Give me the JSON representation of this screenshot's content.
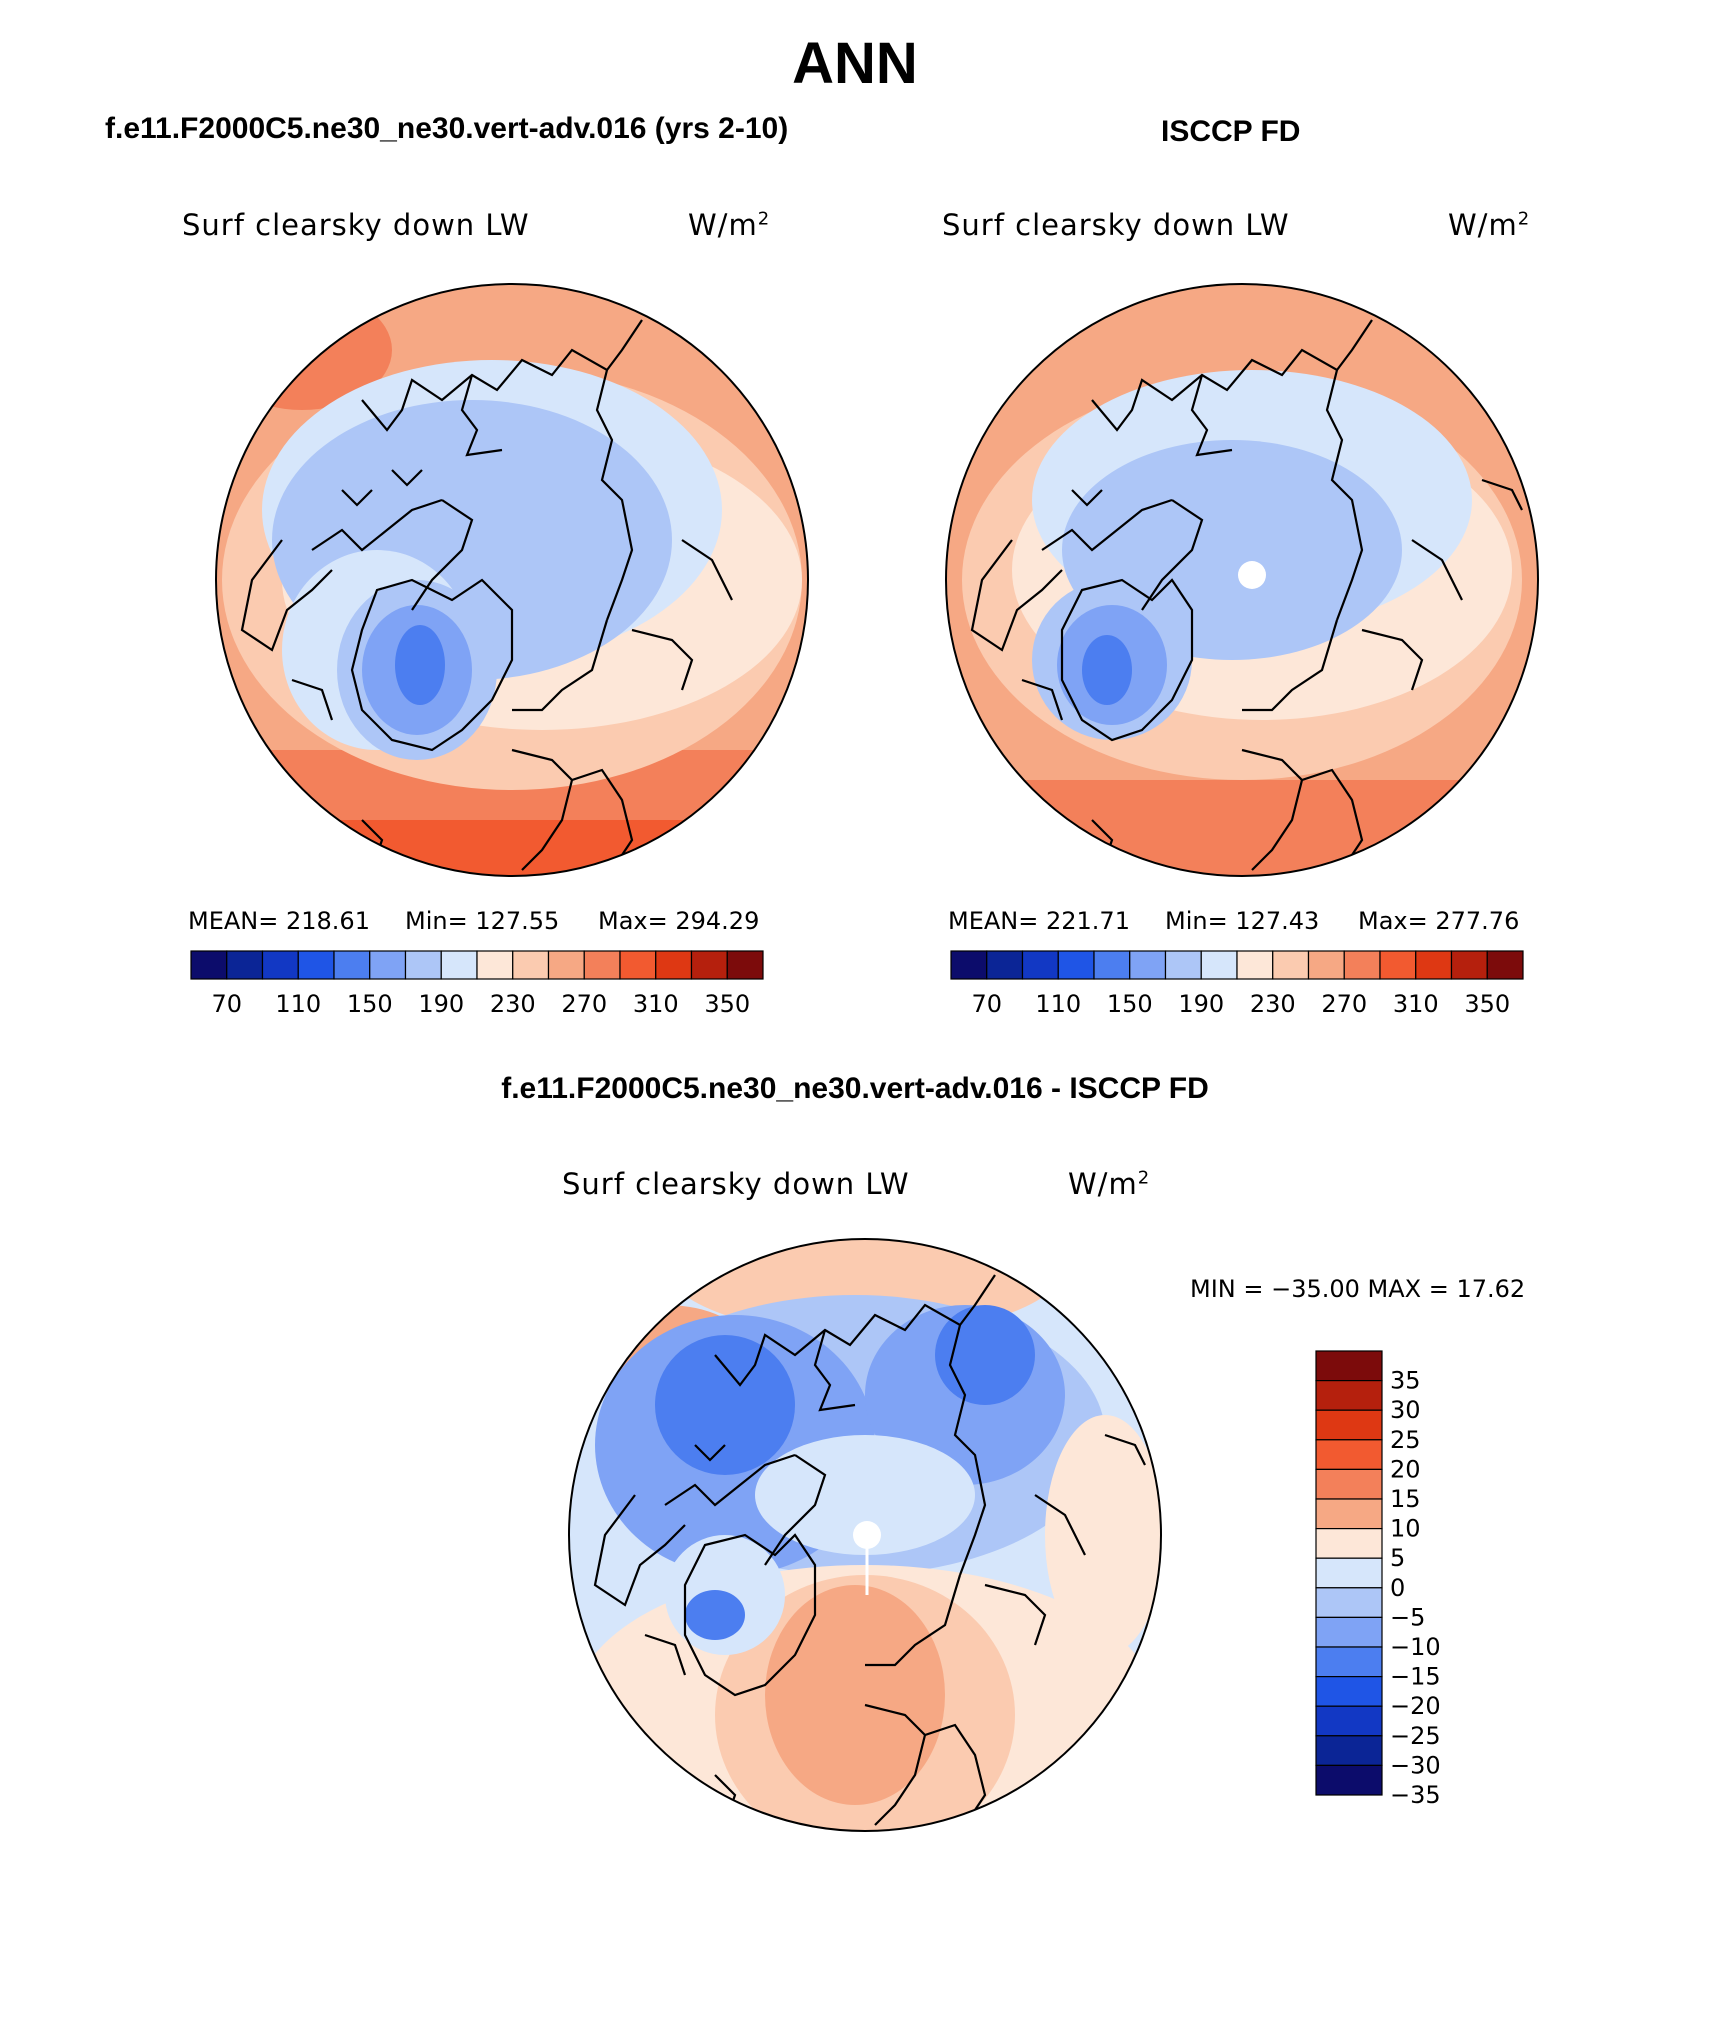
{
  "page": {
    "title": "ANN"
  },
  "panels": [
    {
      "id": "model",
      "header": "f.e11.F2000C5.ne30_ne30.vert-adv.016 (yrs 2-10)",
      "variable": "Surf clearsky down LW",
      "units": "W/m",
      "units_sup": "2",
      "stats": {
        "mean_label": "MEAN= 218.61",
        "min_label": "Min= 127.55",
        "max_label": "Max= 294.29"
      }
    },
    {
      "id": "obs",
      "header": "ISCCP FD",
      "variable": "Surf clearsky down LW",
      "units": "W/m",
      "units_sup": "2",
      "stats": {
        "mean_label": "MEAN= 221.71",
        "min_label": "Min= 127.43",
        "max_label": "Max= 277.76"
      }
    },
    {
      "id": "diff",
      "header": "f.e11.F2000C5.ne30_ne30.vert-adv.016 - ISCCP FD",
      "variable": "Surf clearsky down LW",
      "units": "W/m",
      "units_sup": "2",
      "stats": {
        "minmax_label": "MIN = −35.00 MAX =  17.62"
      }
    }
  ],
  "colorbars": {
    "absolute": {
      "colors": [
        "#0c0c6b",
        "#0b2596",
        "#1238c4",
        "#1f55e6",
        "#4c7ef0",
        "#7fa3f5",
        "#adc6f7",
        "#d6e6fb",
        "#fde7d8",
        "#fbcbb0",
        "#f6a884",
        "#f3805a",
        "#f25a30",
        "#de3813",
        "#b5200d",
        "#7c0b0b"
      ],
      "labels": [
        "70",
        "110",
        "150",
        "190",
        "230",
        "270",
        "310",
        "350"
      ]
    },
    "difference": {
      "colors_top_to_bottom": [
        "#7c0b0b",
        "#b5200d",
        "#de3813",
        "#f25a30",
        "#f3805a",
        "#f6a884",
        "#fde7d8",
        "#d6e6fb",
        "#adc6f7",
        "#7fa3f5",
        "#4c7ef0",
        "#1f55e6",
        "#1238c4",
        "#0b2596",
        "#0c0c6b"
      ],
      "labels_top_to_bottom": [
        "35",
        "30",
        "25",
        "20",
        "15",
        "10",
        "5",
        "0",
        "−5",
        "−10",
        "−15",
        "−20",
        "−25",
        "−30",
        "−35"
      ]
    }
  }
}
